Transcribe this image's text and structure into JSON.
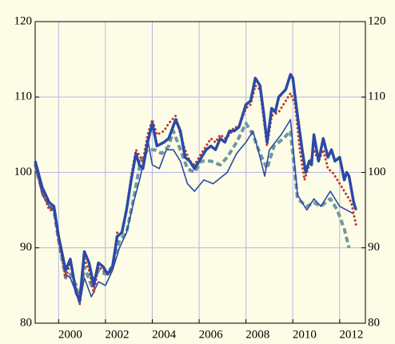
{
  "chart_data": {
    "type": "line",
    "xlim": [
      1999,
      2013.1
    ],
    "xticks": [
      2000,
      2002,
      2004,
      2006,
      2008,
      2010,
      2012
    ],
    "ylim": [
      80,
      120
    ],
    "yticks": [
      80,
      90,
      100,
      110,
      120
    ],
    "y2lim": [
      80,
      120
    ],
    "y2ticks": [
      80,
      90,
      100,
      110,
      120
    ],
    "grid": true,
    "series": [
      {
        "color": "#2b4aa6",
        "style": "thick",
        "x": [
          1999.0,
          1999.3,
          1999.6,
          1999.8,
          2000.0,
          2000.3,
          2000.5,
          2000.75,
          2000.9,
          2001.1,
          2001.3,
          2001.5,
          2001.7,
          2001.9,
          2002.1,
          2002.3,
          2002.5,
          2002.7,
          2002.9,
          2003.1,
          2003.3,
          2003.45,
          2003.6,
          2003.8,
          2004.0,
          2004.2,
          2004.5,
          2004.7,
          2005.0,
          2005.2,
          2005.4,
          2005.6,
          2005.8,
          2006.0,
          2006.3,
          2006.5,
          2006.7,
          2006.9,
          2007.1,
          2007.3,
          2007.5,
          2007.7,
          2008.0,
          2008.2,
          2008.4,
          2008.6,
          2008.75,
          2008.9,
          2009.1,
          2009.25,
          2009.4,
          2009.55,
          2009.7,
          2009.9,
          2010.0,
          2010.2,
          2010.4,
          2010.55,
          2010.7,
          2010.8,
          2010.9,
          2011.1,
          2011.3,
          2011.5,
          2011.65,
          2011.8,
          2012.0,
          2012.2,
          2012.3,
          2012.4,
          2012.6,
          2012.7
        ],
        "values": [
          101.5,
          98,
          96,
          95.5,
          91.5,
          87,
          88.5,
          84,
          83,
          89.5,
          88,
          85,
          88,
          87.5,
          86.5,
          87.5,
          91.5,
          92,
          95,
          99,
          102.5,
          101,
          100.5,
          104,
          106.5,
          103.5,
          104,
          104.5,
          107,
          105.5,
          102,
          101.5,
          100.5,
          101.5,
          103,
          103.5,
          103,
          104.5,
          104,
          105.5,
          105.5,
          106,
          109,
          109.5,
          112.5,
          111.5,
          108,
          104,
          108.5,
          108,
          110,
          110.5,
          111,
          113,
          112.5,
          107.5,
          103,
          100,
          101.5,
          101,
          105,
          101.5,
          104.5,
          102,
          103,
          101.5,
          102,
          99,
          100,
          99.5,
          96,
          95
        ]
      },
      {
        "color": "#c0392b",
        "style": "dotted",
        "x": [
          1999.0,
          1999.3,
          1999.6,
          1999.8,
          2000.0,
          2000.3,
          2000.5,
          2000.75,
          2000.9,
          2001.1,
          2001.3,
          2001.5,
          2001.7,
          2001.9,
          2002.1,
          2002.3,
          2002.5,
          2002.7,
          2002.9,
          2003.1,
          2003.3,
          2003.6,
          2003.8,
          2004.0,
          2004.2,
          2004.5,
          2004.7,
          2005.0,
          2005.2,
          2005.4,
          2005.6,
          2005.8,
          2006.0,
          2006.3,
          2006.5,
          2006.7,
          2006.9,
          2007.1,
          2007.3,
          2007.5,
          2007.7,
          2008.0,
          2008.2,
          2008.4,
          2008.6,
          2008.9,
          2009.1,
          2009.4,
          2009.7,
          2009.9,
          2010.1,
          2010.3,
          2010.5,
          2010.7,
          2010.9,
          2011.1,
          2011.3,
          2011.5,
          2011.7,
          2011.9,
          2012.1,
          2012.3,
          2012.5,
          2012.7
        ],
        "values": [
          101,
          97.5,
          95,
          95,
          91,
          86,
          88,
          84.5,
          82.5,
          88.5,
          87,
          84,
          87.5,
          87,
          86.5,
          87,
          92,
          92,
          95,
          99.5,
          103,
          101.5,
          105,
          107,
          105,
          105.5,
          106.5,
          107.5,
          105,
          103,
          101.5,
          101,
          102,
          103.5,
          104.5,
          104,
          105,
          104.5,
          105,
          106,
          106,
          108.5,
          109,
          111.5,
          111,
          103.5,
          107.5,
          108,
          109.5,
          110.5,
          109,
          103,
          99,
          101,
          103,
          101.5,
          103,
          100.5,
          100,
          99,
          98,
          97,
          96,
          93
        ]
      },
      {
        "color": "#2b4aa6",
        "style": "thin",
        "x": [
          1999.0,
          1999.3,
          1999.6,
          1999.8,
          2000.0,
          2000.3,
          2000.5,
          2000.75,
          2000.9,
          2001.1,
          2001.4,
          2001.7,
          2002.0,
          2002.3,
          2002.6,
          2002.9,
          2003.2,
          2003.5,
          2003.8,
          2004.0,
          2004.3,
          2004.6,
          2004.9,
          2005.2,
          2005.5,
          2005.8,
          2006.2,
          2006.6,
          2007.0,
          2007.2,
          2007.6,
          2008.0,
          2008.3,
          2008.6,
          2008.8,
          2009.0,
          2009.5,
          2009.9,
          2010.2,
          2010.6,
          2010.9,
          2011.2,
          2011.6,
          2012.0,
          2012.3,
          2012.6
        ],
        "values": [
          101,
          97,
          95.5,
          95,
          91,
          86.5,
          86,
          84,
          82.5,
          86,
          83.5,
          85.5,
          85,
          87,
          90,
          92,
          96,
          99.5,
          104.5,
          101,
          100.5,
          103,
          103,
          101.5,
          98.5,
          97.5,
          99,
          98.5,
          99.5,
          100,
          102.5,
          104,
          105.5,
          102,
          99.5,
          103,
          105,
          107,
          97,
          95,
          96.5,
          95.5,
          97.5,
          95.5,
          95,
          94.5
        ]
      },
      {
        "color": "#6f97a4",
        "style": "dashed",
        "x": [
          1999.0,
          1999.3,
          1999.6,
          1999.8,
          2000.0,
          2000.3,
          2000.5,
          2000.75,
          2000.9,
          2001.1,
          2001.4,
          2001.7,
          2002.0,
          2002.3,
          2002.6,
          2002.9,
          2003.2,
          2003.5,
          2003.8,
          2004.1,
          2004.4,
          2004.7,
          2004.9,
          2005.2,
          2005.5,
          2005.8,
          2006.1,
          2006.5,
          2006.9,
          2007.2,
          2007.6,
          2008.0,
          2008.3,
          2008.6,
          2008.9,
          2009.2,
          2009.6,
          2009.9,
          2010.2,
          2010.6,
          2010.9,
          2011.2,
          2011.6,
          2011.9,
          2012.2,
          2012.4
        ],
        "values": [
          101,
          97.5,
          95.5,
          95,
          91,
          86,
          86.5,
          85,
          83,
          87.5,
          85,
          87,
          86.5,
          87.5,
          91,
          92,
          96.5,
          101.5,
          103,
          103,
          102.5,
          103.5,
          105.5,
          103,
          100.5,
          100,
          101.5,
          101.5,
          101,
          102,
          104,
          106.5,
          105,
          102.5,
          100.5,
          103.5,
          104.5,
          105.5,
          96.5,
          95.5,
          96,
          95.5,
          96.5,
          95,
          92.5,
          90
        ]
      }
    ]
  }
}
